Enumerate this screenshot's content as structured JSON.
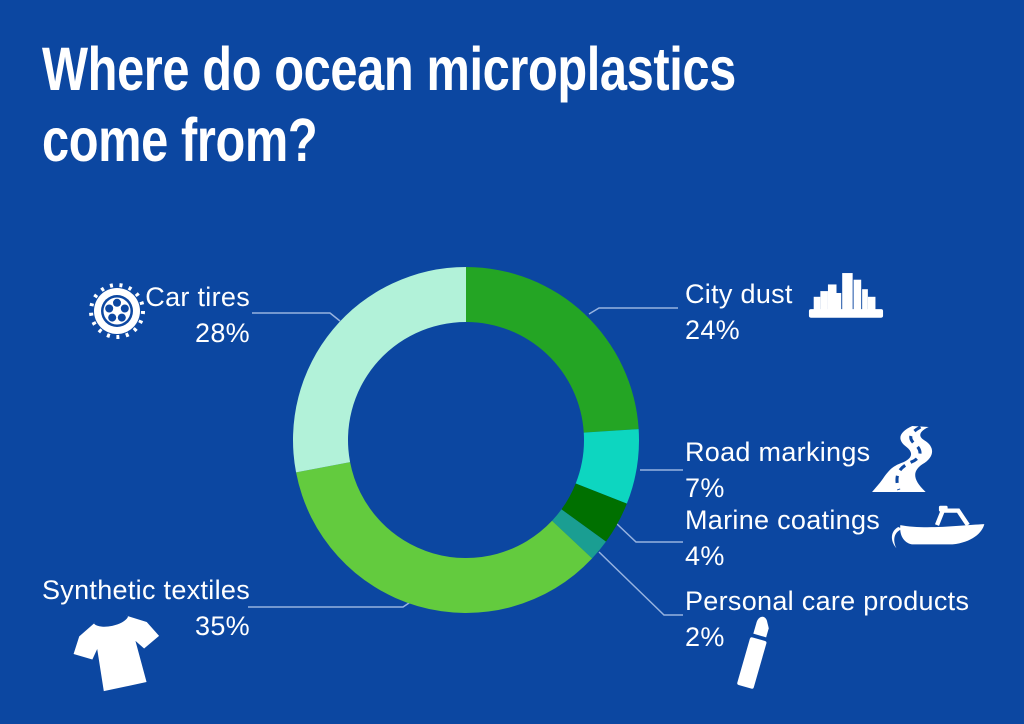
{
  "colors": {
    "background": "#0C47A1",
    "text": "#FFFFFF",
    "callout_line": "#97B3E0"
  },
  "title": {
    "line1": "Where do ocean microplastics",
    "line2": "come from?"
  },
  "chart_data": {
    "type": "pie",
    "subtype": "donut",
    "title": "Where do ocean microplastics come from?",
    "start_angle_deg": 0,
    "direction": "clockwise",
    "unit": "%",
    "legend_position": "around-chart",
    "segments": [
      {
        "label": "City dust",
        "value": 24,
        "value_label": "24%",
        "color": "#24A524",
        "icon": "city-icon"
      },
      {
        "label": "Road markings",
        "value": 7,
        "value_label": "7%",
        "color": "#0DD6C0",
        "icon": "road-icon"
      },
      {
        "label": "Marine coatings",
        "value": 4,
        "value_label": "4%",
        "color": "#007000",
        "icon": "boat-icon"
      },
      {
        "label": "Personal care products",
        "value": 2,
        "value_label": "2%",
        "color": "#1A9E92",
        "icon": "lipstick-icon"
      },
      {
        "label": "Synthetic textiles",
        "value": 35,
        "value_label": "35%",
        "color": "#63CB3E",
        "icon": "tshirt-icon"
      },
      {
        "label": "Car tires",
        "value": 28,
        "value_label": "28%",
        "color": "#B2F2D9",
        "icon": "tire-icon"
      }
    ]
  }
}
